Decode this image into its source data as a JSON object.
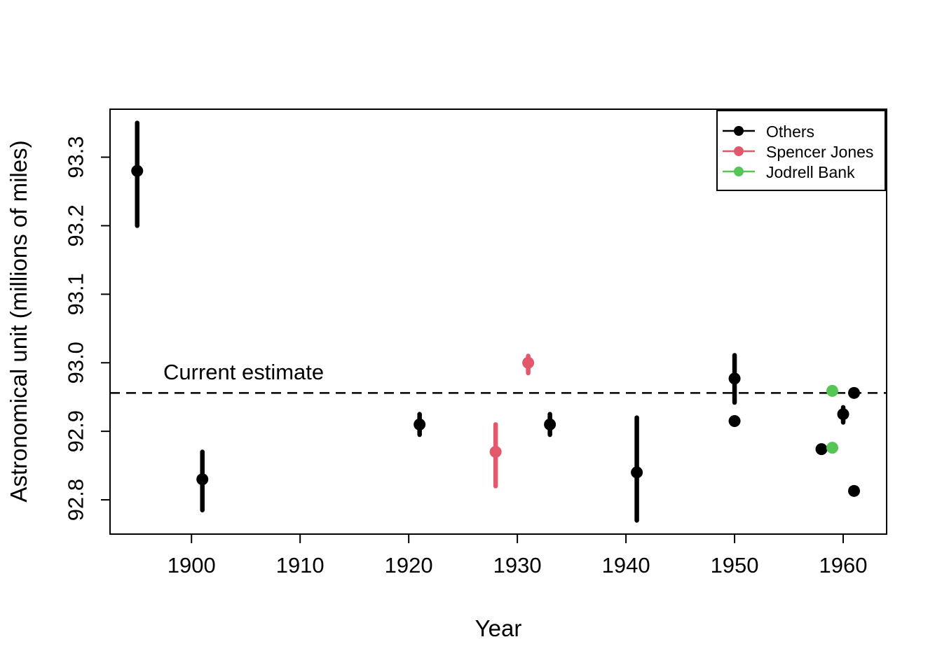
{
  "figure": {
    "background": "#ffffff",
    "annotation": {
      "label": "Current estimate",
      "value": 92.956
    },
    "legend": {
      "position": "top-right",
      "items": [
        {
          "label": "Others",
          "color": "#000000"
        },
        {
          "label": "Spencer Jones",
          "color": "#E2596B"
        },
        {
          "label": "Jodrell Bank",
          "color": "#55C556"
        }
      ]
    }
  },
  "chart_data": {
    "type": "scatter",
    "title": "",
    "xlabel": "Year",
    "ylabel": "Astronomical unit (millions of miles)",
    "xlim": [
      1892.5,
      1964
    ],
    "ylim": [
      92.75,
      93.37
    ],
    "x_ticks": [
      1900,
      1910,
      1920,
      1930,
      1940,
      1950,
      1960
    ],
    "x_tick_labels": [
      "1900",
      "1910",
      "1920",
      "1930",
      "1940",
      "1950",
      "1960"
    ],
    "y_ticks": [
      92.8,
      92.9,
      93.0,
      93.1,
      93.2,
      93.3
    ],
    "y_tick_labels": [
      "92.8",
      "92.9",
      "93.0",
      "93.1",
      "93.2",
      "93.3"
    ],
    "grid": false,
    "legend_position": "top-right",
    "reference_line": {
      "label": "Current estimate",
      "y": 92.956,
      "style": "dashed",
      "color": "#000000"
    },
    "series": [
      {
        "name": "Others",
        "color": "#000000",
        "points": [
          {
            "year": 1895,
            "value": 93.28,
            "lo": 93.2,
            "hi": 93.35
          },
          {
            "year": 1901,
            "value": 92.83,
            "lo": 92.785,
            "hi": 92.87
          },
          {
            "year": 1921,
            "value": 92.91,
            "lo": 92.895,
            "hi": 92.925
          },
          {
            "year": 1933,
            "value": 92.91,
            "lo": 92.895,
            "hi": 92.925
          },
          {
            "year": 1941,
            "value": 92.84,
            "lo": 92.77,
            "hi": 92.92
          },
          {
            "year": 1950,
            "value": 92.977,
            "lo": 92.942,
            "hi": 93.011
          },
          {
            "year": 1950,
            "value": 92.915
          },
          {
            "year": 1958,
            "value": 92.874
          },
          {
            "year": 1960,
            "value": 92.925,
            "lo": 92.913,
            "hi": 92.935
          },
          {
            "year": 1961,
            "value": 92.956
          },
          {
            "year": 1961,
            "value": 92.813
          }
        ]
      },
      {
        "name": "Spencer Jones",
        "color": "#E2596B",
        "points": [
          {
            "year": 1928,
            "value": 92.87,
            "lo": 92.82,
            "hi": 92.91
          },
          {
            "year": 1931,
            "value": 93.0,
            "lo": 92.985,
            "hi": 93.01
          }
        ]
      },
      {
        "name": "Jodrell Bank",
        "color": "#55C556",
        "points": [
          {
            "year": 1959,
            "value": 92.876
          },
          {
            "year": 1959,
            "value": 92.959
          }
        ]
      }
    ]
  }
}
